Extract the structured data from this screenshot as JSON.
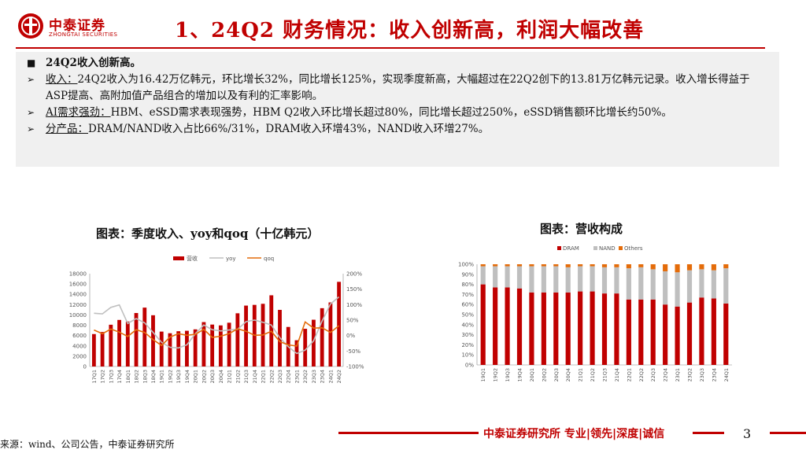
{
  "logo": {
    "cn": "中泰证券",
    "en": "ZHONGTAI SECURITIES"
  },
  "title": "1、24Q2 财务情况：收入创新高，利润大幅改善",
  "summary": {
    "heading": "24Q2收入创新高。",
    "items": [
      {
        "label": "收入：",
        "text": "24Q2收入为16.42万亿韩元，环比增长32%，同比增长125%，实现季度新高，大幅超过在22Q2创下的13.81万亿韩元记录。收入增长得益于ASP提高、高附加值产品组合的增加以及有利的汇率影响。"
      },
      {
        "label": "AI需求强劲：",
        "text": "HBM、eSSD需求表现强势，HBM Q2收入环比增长超过80%，同比增长超过250%，eSSD销售额环比增长约50%。"
      },
      {
        "label": "分产品：",
        "text": "DRAM/NAND收入占比66%/31%，DRAM收入环增43%，NAND收入环增27%。"
      }
    ]
  },
  "chart_titles": {
    "left": "图表：季度收入、yoy和qoq（十亿韩元）",
    "right": "图表：营收构成"
  },
  "chart_data": [
    {
      "type": "bar",
      "title": "图表：季度收入、yoy和qoq（十亿韩元）",
      "legend": [
        "营收",
        "yoy",
        "qoq"
      ],
      "categories": [
        "17Q1",
        "17Q2",
        "17Q3",
        "17Q4",
        "18Q1",
        "18Q2",
        "18Q3",
        "18Q4",
        "19Q1",
        "19Q2",
        "19Q3",
        "19Q4",
        "20Q1",
        "20Q2",
        "20Q3",
        "20Q4",
        "21Q1",
        "21Q2",
        "21Q3",
        "21Q4",
        "22Q1",
        "22Q2",
        "22Q3",
        "22Q4",
        "23Q1",
        "23Q2",
        "23Q3",
        "23Q4",
        "24Q1",
        "24Q2"
      ],
      "series": [
        {
          "name": "营收",
          "axis": "left",
          "values": [
            6290,
            6690,
            8100,
            9030,
            8720,
            10370,
            11420,
            9940,
            6770,
            6450,
            6840,
            6930,
            7200,
            8610,
            8130,
            7970,
            8490,
            10320,
            11810,
            11950,
            12160,
            13810,
            10980,
            7670,
            5090,
            7310,
            9070,
            11310,
            12430,
            16420
          ]
        },
        {
          "name": "yoy",
          "axis": "right",
          "values": [
            72,
            70,
            91,
            99,
            39,
            55,
            41,
            10,
            -22,
            -38,
            -40,
            -30,
            6,
            34,
            19,
            15,
            18,
            20,
            45,
            50,
            43,
            34,
            -7,
            -36,
            -58,
            -47,
            -17,
            47,
            102,
            125
          ]
        },
        {
          "name": "qoq",
          "axis": "right",
          "values": [
            18,
            6,
            21,
            11,
            -3,
            19,
            10,
            -13,
            -32,
            -5,
            6,
            1,
            4,
            20,
            -6,
            -2,
            6,
            22,
            14,
            1,
            2,
            14,
            -20,
            -30,
            -34,
            44,
            24,
            25,
            10,
            32
          ]
        }
      ],
      "ylim_left": [
        0,
        18000
      ],
      "yticks_left": [
        0,
        2000,
        4000,
        6000,
        8000,
        10000,
        12000,
        14000,
        16000,
        18000
      ],
      "ylim_right": [
        -100,
        200
      ],
      "yticks_right": [
        "-100%",
        "-50%",
        "0%",
        "50%",
        "100%",
        "150%",
        "200%"
      ]
    },
    {
      "type": "bar",
      "stacked": true,
      "title": "图表：营收构成",
      "legend": [
        "DRAM",
        "NAND",
        "Others"
      ],
      "categories": [
        "19Q1",
        "19Q2",
        "19Q3",
        "19Q4",
        "20Q1",
        "20Q2",
        "20Q3",
        "20Q4",
        "21Q1",
        "21Q2",
        "21Q3",
        "21Q4",
        "22Q1",
        "22Q2",
        "22Q3",
        "22Q4",
        "23Q1",
        "23Q2",
        "23Q3",
        "23Q4",
        "24Q1"
      ],
      "series": [
        {
          "name": "DRAM",
          "values": [
            80,
            77,
            77,
            76,
            72,
            72,
            72,
            72,
            73,
            73,
            71,
            71,
            65,
            65,
            65,
            60,
            58,
            62,
            67,
            66,
            61
          ]
        },
        {
          "name": "NAND",
          "values": [
            18,
            21,
            21,
            22,
            26,
            26,
            26,
            25,
            25,
            25,
            26,
            26,
            31,
            32,
            30,
            33,
            34,
            32,
            28,
            28,
            35
          ]
        },
        {
          "name": "Others",
          "values": [
            2,
            2,
            2,
            2,
            2,
            2,
            2,
            3,
            2,
            2,
            3,
            3,
            4,
            3,
            5,
            7,
            8,
            6,
            5,
            6,
            4
          ]
        }
      ],
      "ylim": [
        0,
        100
      ],
      "yticks": [
        "0%",
        "10%",
        "20%",
        "30%",
        "40%",
        "50%",
        "60%",
        "70%",
        "80%",
        "90%",
        "100%"
      ]
    }
  ],
  "colors": {
    "revenue": "#c00000",
    "yoy": "#bfbfbf",
    "qoq": "#e46c0a",
    "dram": "#c00000",
    "nand": "#bfbfbf",
    "others": "#e46c0a"
  },
  "footer": {
    "source": "来源：wind、公司公告，中泰证券研究所",
    "brand": "中泰证券研究所 专业|领先|深度|诚信",
    "page": "3"
  }
}
